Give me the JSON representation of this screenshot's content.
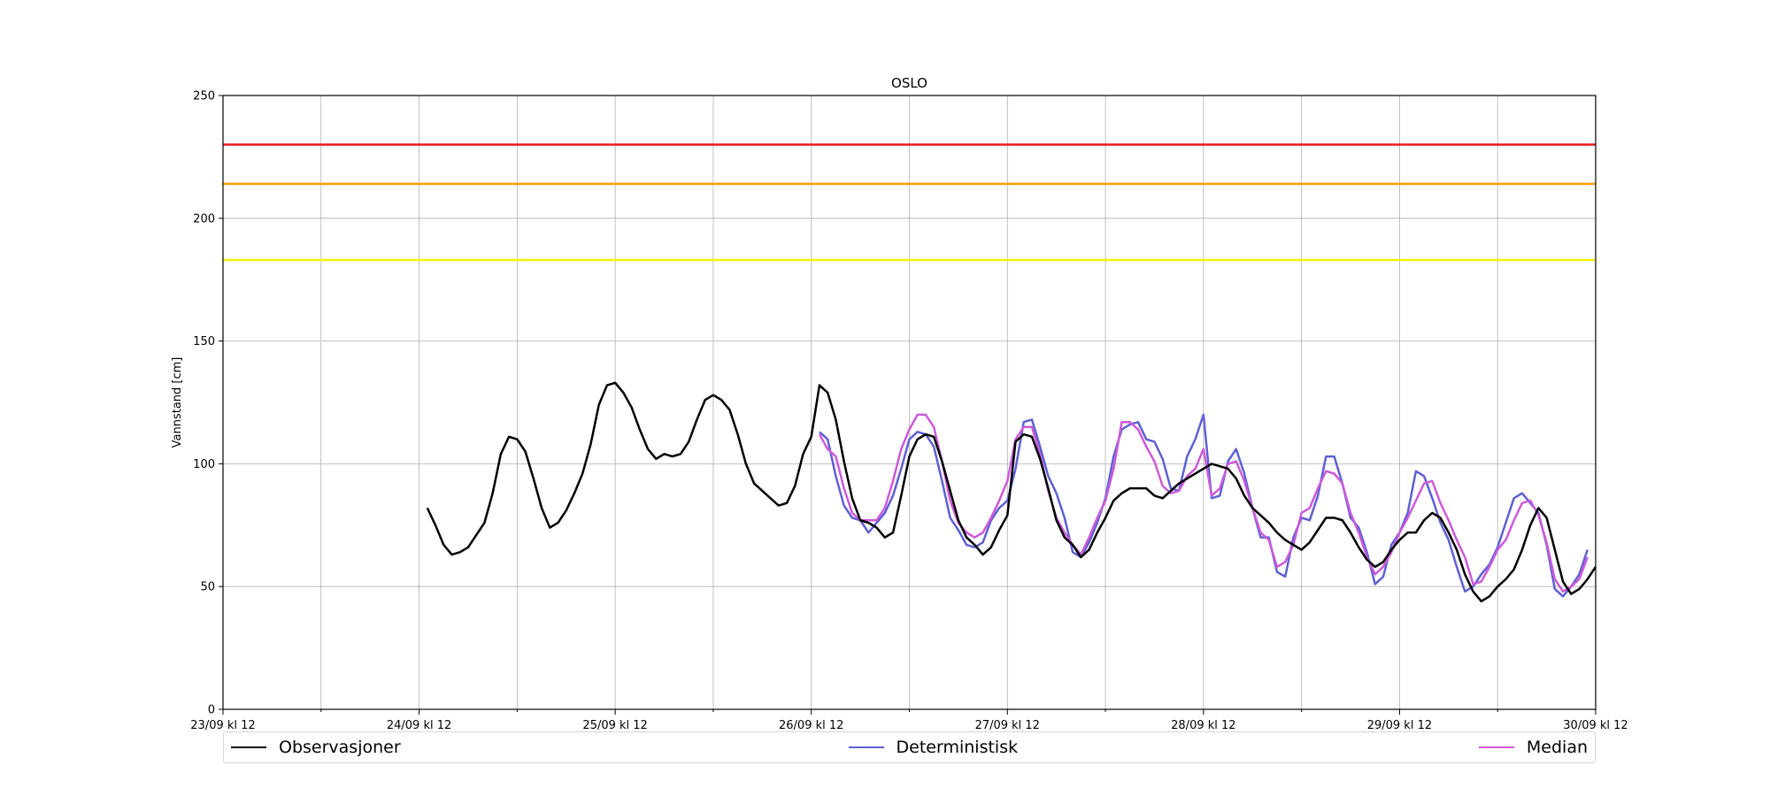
{
  "chart_data": {
    "type": "line",
    "title": "OSLO",
    "ylabel": "Vannstand [cm]",
    "xlabel": "",
    "ylim": [
      0,
      250
    ],
    "yticks": [
      0,
      50,
      100,
      150,
      200,
      250
    ],
    "x_unit": "hours since 23/09 kl 12",
    "xlim": [
      0,
      168
    ],
    "xticks": [
      {
        "x": 0,
        "label": "23/09 kl 12"
      },
      {
        "x": 24,
        "label": "24/09 kl 12"
      },
      {
        "x": 48,
        "label": "25/09 kl 12"
      },
      {
        "x": 72,
        "label": "26/09 kl 12"
      },
      {
        "x": 96,
        "label": "27/09 kl 12"
      },
      {
        "x": 120,
        "label": "28/09 kl 12"
      },
      {
        "x": 144,
        "label": "29/09 kl 12"
      },
      {
        "x": 168,
        "label": "30/09 kl 12"
      }
    ],
    "minor_xticks": [
      12,
      36,
      60,
      84,
      108,
      132,
      156
    ],
    "grid": true,
    "legend_position": "bottom",
    "thresholds": [
      {
        "value": 230,
        "color": "#e8191c"
      },
      {
        "value": 214,
        "color": "#f59e0b"
      },
      {
        "value": 183,
        "color": "#f2f20a"
      }
    ],
    "series": [
      {
        "name": "Observasjoner",
        "color": "#000000",
        "x_start": 25,
        "x_step": 1,
        "values": [
          82,
          75,
          67,
          63,
          64,
          66,
          71,
          76,
          88,
          104,
          111,
          110,
          105,
          94,
          82,
          74,
          76,
          81,
          88,
          96,
          108,
          124,
          132,
          133,
          129,
          123,
          114,
          106,
          102,
          104,
          103,
          104,
          109,
          118,
          126,
          128,
          126,
          122,
          112,
          100,
          92,
          89,
          86,
          83,
          84,
          91,
          104,
          111,
          132,
          129,
          118,
          101,
          86,
          77,
          76,
          74,
          70,
          72,
          87,
          103,
          110,
          112,
          111,
          101,
          89,
          77,
          70,
          67,
          63,
          66,
          73,
          79,
          109,
          112,
          111,
          102,
          90,
          77,
          70,
          67,
          62,
          65,
          72,
          78,
          85,
          88,
          90,
          90,
          90,
          87,
          86,
          89,
          92,
          94,
          96,
          98,
          100,
          99,
          98,
          94,
          87,
          82,
          79,
          76,
          72,
          69,
          67,
          65,
          68,
          73,
          78,
          78,
          77,
          72,
          66,
          61,
          58,
          60,
          65,
          69,
          72,
          72,
          77,
          80,
          78,
          72,
          65,
          55,
          48,
          44,
          46,
          50,
          53,
          57,
          65,
          75,
          82,
          78,
          65,
          52,
          47,
          49,
          53,
          58
        ]
      },
      {
        "name": "Deterministisk",
        "color": "#5f5fd4",
        "x_start": 73,
        "x_step": 1,
        "values": [
          113,
          110,
          95,
          83,
          78,
          77,
          72,
          76,
          80,
          87,
          98,
          110,
          113,
          112,
          107,
          93,
          78,
          73,
          67,
          66,
          68,
          77,
          82,
          85,
          98,
          117,
          118,
          107,
          95,
          88,
          78,
          64,
          62,
          68,
          76,
          86,
          103,
          114,
          116,
          117,
          110,
          109,
          102,
          90,
          89,
          103,
          110,
          120,
          86,
          87,
          101,
          106,
          96,
          82,
          70,
          70,
          56,
          54,
          70,
          78,
          77,
          87,
          103,
          103,
          92,
          78,
          74,
          64,
          51,
          54,
          67,
          72,
          80,
          97,
          95,
          86,
          76,
          69,
          58,
          48,
          50,
          55,
          59,
          66,
          76,
          86,
          88,
          84,
          80,
          67,
          49,
          46,
          50,
          55,
          65
        ]
      },
      {
        "name": "Median",
        "color": "#cc5ad9",
        "x_start": 73,
        "x_step": 1,
        "values": [
          112,
          106,
          103,
          90,
          80,
          77,
          77,
          77,
          82,
          93,
          106,
          114,
          120,
          120,
          115,
          101,
          85,
          76,
          72,
          70,
          72,
          78,
          85,
          93,
          110,
          115,
          115,
          104,
          89,
          78,
          72,
          67,
          63,
          70,
          78,
          85,
          98,
          117,
          117,
          114,
          107,
          101,
          91,
          88,
          89,
          95,
          98,
          106,
          87,
          90,
          100,
          101,
          93,
          82,
          72,
          69,
          58,
          60,
          67,
          80,
          82,
          90,
          97,
          96,
          92,
          80,
          72,
          62,
          55,
          58,
          64,
          72,
          78,
          85,
          92,
          93,
          84,
          77,
          69,
          62,
          51,
          52,
          58,
          65,
          69,
          77,
          84,
          85,
          79,
          68,
          53,
          48,
          50,
          53,
          62
        ]
      }
    ]
  }
}
